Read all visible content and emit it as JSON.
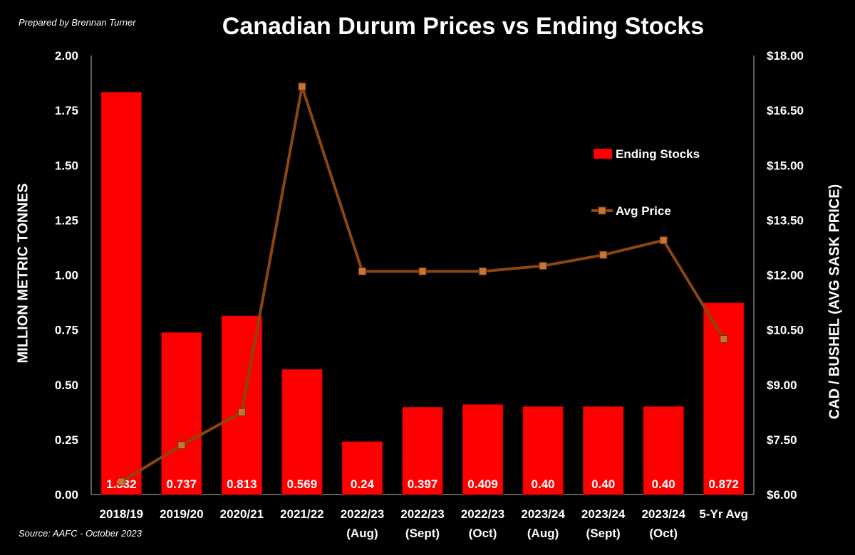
{
  "prepared_by": "Prepared by Brennan Turner",
  "source": "Source: AAFC - October 2023",
  "colors": {
    "bar": "#ff0000",
    "line": "#8b4513",
    "marker": "#c87533",
    "background": "#000000"
  },
  "chart_data": {
    "type": "bar",
    "title": "Canadian Durum Prices vs Ending Stocks",
    "ylabel": "MILLION METRIC TONNES",
    "ylabel_right": "CAD / BUSHEL (AVG SASK PRICE)",
    "ylim": [
      0,
      2
    ],
    "ylim_right": [
      6,
      18
    ],
    "yticks": [
      "0.00",
      "0.25",
      "0.50",
      "0.75",
      "1.00",
      "1.25",
      "1.50",
      "1.75",
      "2.00"
    ],
    "yticks_right": [
      "$6.00",
      "$7.50",
      "$9.00",
      "$10.50",
      "$12.00",
      "$13.50",
      "$15.00",
      "$16.50",
      "$18.00"
    ],
    "categories": [
      [
        "2018/19"
      ],
      [
        "2019/20"
      ],
      [
        "2020/21"
      ],
      [
        "2021/22"
      ],
      [
        "2022/23",
        "(Aug)"
      ],
      [
        "2022/23",
        "(Sept)"
      ],
      [
        "2022/23",
        "(Oct)"
      ],
      [
        "2023/24",
        "(Aug)"
      ],
      [
        "2023/24",
        "(Sept)"
      ],
      [
        "2023/24",
        "(Oct)"
      ],
      [
        "5-Yr Avg"
      ]
    ],
    "series": [
      {
        "name": "Ending Stocks",
        "type": "bar",
        "axis": "left",
        "values": [
          1.832,
          0.737,
          0.813,
          0.569,
          0.24,
          0.397,
          0.409,
          0.4,
          0.4,
          0.4,
          0.872
        ],
        "labels": [
          "1.832",
          "0.737",
          "0.813",
          "0.569",
          "0.24",
          "0.397",
          "0.409",
          "0.40",
          "0.40",
          "0.40",
          "0.872"
        ]
      },
      {
        "name": "Avg Price",
        "type": "line",
        "axis": "right",
        "values": [
          6.35,
          7.35,
          8.25,
          17.15,
          12.1,
          12.1,
          12.1,
          12.25,
          12.55,
          12.95,
          10.25
        ]
      }
    ],
    "legend": "right"
  }
}
